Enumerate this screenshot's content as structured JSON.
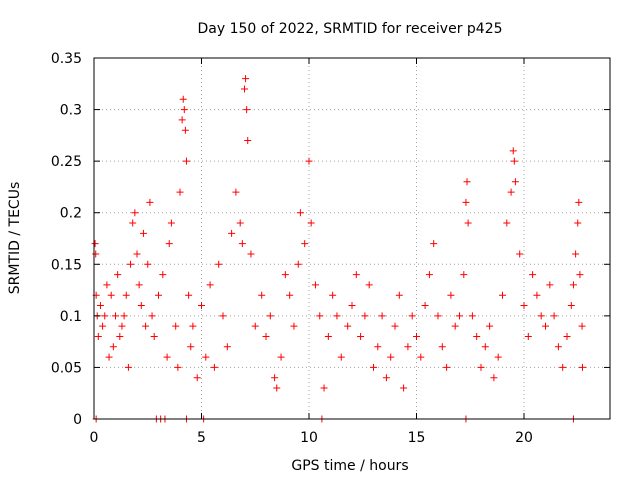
{
  "chart_data": {
    "type": "scatter",
    "title": "Day 150 of 2022, SRMTID for receiver p425",
    "xlabel": "GPS time / hours",
    "ylabel": "SRMTID / TECUs",
    "xlim": [
      0,
      24
    ],
    "ylim": [
      0,
      0.35
    ],
    "x_ticks": [
      0,
      5,
      10,
      15,
      20
    ],
    "x_tick_labels": [
      "0",
      "5",
      "10",
      "15",
      "20"
    ],
    "y_ticks": [
      0,
      0.05,
      0.1,
      0.15,
      0.2,
      0.25,
      0.3,
      0.35
    ],
    "y_tick_labels": [
      "0",
      "0.05",
      "0.1",
      "0.15",
      "0.2",
      "0.25",
      "0.3",
      "0.35"
    ],
    "grid": true,
    "marker": "+",
    "color": "#ff0000",
    "note": "Approximately 2000 samples across 0-22.7 h; listed values are representative points read from the plot.",
    "points": [
      [
        0.05,
        0.17
      ],
      [
        0.08,
        0.16
      ],
      [
        0.1,
        0.12
      ],
      [
        0.15,
        0.1
      ],
      [
        0.2,
        0.08
      ],
      [
        0.3,
        0.11
      ],
      [
        0.4,
        0.09
      ],
      [
        0.5,
        0.1
      ],
      [
        0.6,
        0.13
      ],
      [
        0.7,
        0.06
      ],
      [
        0.8,
        0.12
      ],
      [
        0.9,
        0.07
      ],
      [
        1.0,
        0.1
      ],
      [
        1.1,
        0.14
      ],
      [
        1.2,
        0.08
      ],
      [
        1.3,
        0.09
      ],
      [
        1.4,
        0.1
      ],
      [
        1.5,
        0.12
      ],
      [
        1.6,
        0.05
      ],
      [
        1.7,
        0.15
      ],
      [
        1.8,
        0.19
      ],
      [
        1.9,
        0.2
      ],
      [
        2.0,
        0.16
      ],
      [
        2.1,
        0.13
      ],
      [
        2.2,
        0.11
      ],
      [
        2.3,
        0.18
      ],
      [
        2.4,
        0.09
      ],
      [
        2.5,
        0.15
      ],
      [
        2.6,
        0.21
      ],
      [
        2.7,
        0.1
      ],
      [
        2.8,
        0.08
      ],
      [
        3.0,
        0.12
      ],
      [
        3.2,
        0.14
      ],
      [
        3.4,
        0.06
      ],
      [
        3.5,
        0.17
      ],
      [
        3.6,
        0.19
      ],
      [
        3.8,
        0.09
      ],
      [
        3.9,
        0.05
      ],
      [
        4.0,
        0.22
      ],
      [
        4.1,
        0.29
      ],
      [
        4.15,
        0.31
      ],
      [
        4.2,
        0.3
      ],
      [
        4.25,
        0.28
      ],
      [
        4.3,
        0.25
      ],
      [
        4.4,
        0.12
      ],
      [
        4.5,
        0.07
      ],
      [
        4.6,
        0.09
      ],
      [
        4.8,
        0.04
      ],
      [
        5.0,
        0.11
      ],
      [
        5.2,
        0.06
      ],
      [
        5.4,
        0.13
      ],
      [
        5.6,
        0.05
      ],
      [
        5.8,
        0.15
      ],
      [
        6.0,
        0.1
      ],
      [
        6.2,
        0.07
      ],
      [
        6.4,
        0.18
      ],
      [
        6.6,
        0.22
      ],
      [
        6.8,
        0.19
      ],
      [
        6.9,
        0.17
      ],
      [
        7.0,
        0.32
      ],
      [
        7.05,
        0.33
      ],
      [
        7.1,
        0.3
      ],
      [
        7.15,
        0.27
      ],
      [
        7.3,
        0.16
      ],
      [
        7.5,
        0.09
      ],
      [
        7.8,
        0.12
      ],
      [
        8.0,
        0.08
      ],
      [
        8.2,
        0.1
      ],
      [
        8.4,
        0.04
      ],
      [
        8.5,
        0.03
      ],
      [
        8.7,
        0.06
      ],
      [
        8.9,
        0.14
      ],
      [
        9.1,
        0.12
      ],
      [
        9.3,
        0.09
      ],
      [
        9.5,
        0.15
      ],
      [
        9.6,
        0.2
      ],
      [
        9.8,
        0.17
      ],
      [
        10.0,
        0.25
      ],
      [
        10.1,
        0.19
      ],
      [
        10.3,
        0.13
      ],
      [
        10.5,
        0.1
      ],
      [
        10.7,
        0.03
      ],
      [
        10.9,
        0.08
      ],
      [
        11.1,
        0.12
      ],
      [
        11.3,
        0.1
      ],
      [
        11.5,
        0.06
      ],
      [
        11.8,
        0.09
      ],
      [
        12.0,
        0.11
      ],
      [
        12.2,
        0.14
      ],
      [
        12.4,
        0.08
      ],
      [
        12.6,
        0.1
      ],
      [
        12.8,
        0.13
      ],
      [
        13.0,
        0.05
      ],
      [
        13.2,
        0.07
      ],
      [
        13.4,
        0.1
      ],
      [
        13.6,
        0.04
      ],
      [
        13.8,
        0.06
      ],
      [
        14.0,
        0.09
      ],
      [
        14.2,
        0.12
      ],
      [
        14.4,
        0.03
      ],
      [
        14.6,
        0.07
      ],
      [
        14.8,
        0.1
      ],
      [
        15.0,
        0.08
      ],
      [
        15.2,
        0.06
      ],
      [
        15.4,
        0.11
      ],
      [
        15.6,
        0.14
      ],
      [
        15.8,
        0.17
      ],
      [
        16.0,
        0.1
      ],
      [
        16.2,
        0.07
      ],
      [
        16.4,
        0.05
      ],
      [
        16.6,
        0.12
      ],
      [
        16.8,
        0.09
      ],
      [
        17.0,
        0.1
      ],
      [
        17.2,
        0.14
      ],
      [
        17.3,
        0.21
      ],
      [
        17.35,
        0.23
      ],
      [
        17.4,
        0.19
      ],
      [
        17.6,
        0.1
      ],
      [
        17.8,
        0.08
      ],
      [
        18.0,
        0.05
      ],
      [
        18.2,
        0.07
      ],
      [
        18.4,
        0.09
      ],
      [
        18.6,
        0.04
      ],
      [
        18.8,
        0.06
      ],
      [
        19.0,
        0.12
      ],
      [
        19.2,
        0.19
      ],
      [
        19.4,
        0.22
      ],
      [
        19.5,
        0.26
      ],
      [
        19.55,
        0.25
      ],
      [
        19.6,
        0.23
      ],
      [
        19.8,
        0.16
      ],
      [
        20.0,
        0.11
      ],
      [
        20.2,
        0.08
      ],
      [
        20.4,
        0.14
      ],
      [
        20.6,
        0.12
      ],
      [
        20.8,
        0.1
      ],
      [
        21.0,
        0.09
      ],
      [
        21.2,
        0.13
      ],
      [
        21.4,
        0.1
      ],
      [
        21.6,
        0.07
      ],
      [
        21.8,
        0.05
      ],
      [
        22.0,
        0.08
      ],
      [
        22.2,
        0.11
      ],
      [
        22.3,
        0.13
      ],
      [
        22.4,
        0.16
      ],
      [
        22.5,
        0.19
      ],
      [
        22.55,
        0.21
      ],
      [
        22.6,
        0.14
      ],
      [
        22.7,
        0.09
      ],
      [
        22.72,
        0.05
      ]
    ],
    "zero_value_times": [
      0.1,
      2.9,
      3.1,
      3.3,
      4.3,
      5.1,
      10.6,
      17.3,
      22.3
    ]
  }
}
